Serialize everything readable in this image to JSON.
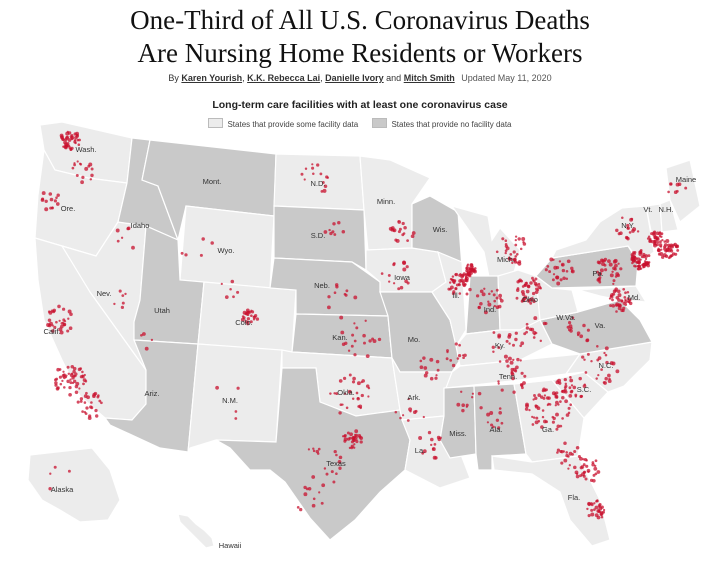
{
  "header": {
    "title_line1": "One-Third of All U.S. Coronavirus Deaths",
    "title_line2": "Are Nursing Home Residents or Workers",
    "byline_prefix": "By",
    "authors": [
      "Karen Yourish",
      "K.K. Rebecca Lai",
      "Danielle Ivory",
      "Mitch Smith"
    ],
    "updated": "Updated May 11, 2020"
  },
  "map": {
    "subtitle": "Long-term care facilities with at least one coronavirus case",
    "legend": [
      {
        "label": "States that provide some facility data",
        "color": "#ececec"
      },
      {
        "label": "States that provide no facility data",
        "color": "#c9c9c9"
      }
    ],
    "colors": {
      "some_data": "#ececec",
      "no_data": "#c9c9c9",
      "border": "#ffffff",
      "dot": "#c8102e"
    },
    "state_labels": [
      "Wash.",
      "Ore.",
      "Calif.",
      "Nev.",
      "Idaho",
      "Mont.",
      "Wyo.",
      "Utah",
      "Colo.",
      "Ariz.",
      "N.M.",
      "N.D.",
      "S.D.",
      "Neb.",
      "Kan.",
      "Texas",
      "Minn.",
      "Iowa",
      "Mo.",
      "Ark.",
      "La.",
      "Wis.",
      "Ill.",
      "Mich.",
      "Ind.",
      "Ohio",
      "Ky.",
      "Tenn.",
      "Miss.",
      "Ala.",
      "Ga.",
      "Fla.",
      "S.C.",
      "N.C.",
      "Va.",
      "W.Va.",
      "Pa.",
      "N.Y.",
      "Vt.",
      "N.H.",
      "Maine",
      "Md.",
      "Okla.",
      "Alaska",
      "Hawaii"
    ]
  }
}
